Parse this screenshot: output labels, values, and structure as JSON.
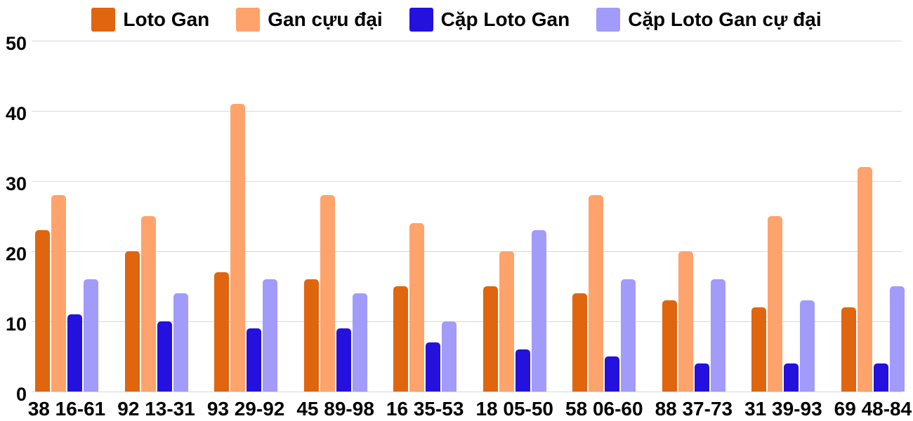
{
  "chart_data": {
    "type": "bar",
    "title": "",
    "xlabel": "",
    "ylabel": "",
    "categories": [
      "38 16-61",
      "92 13-31",
      "93 29-92",
      "45 89-98",
      "16 35-53",
      "18 05-50",
      "58 06-60",
      "88 37-73",
      "31 39-93",
      "69 48-84"
    ],
    "series": [
      {
        "name": "Loto Gan",
        "color": "#e0650f",
        "values": [
          23,
          20,
          17,
          16,
          15,
          15,
          14,
          13,
          12,
          12
        ]
      },
      {
        "name": "Gan cựu đại",
        "color": "#ffa36c",
        "values": [
          28,
          25,
          41,
          28,
          24,
          20,
          28,
          20,
          25,
          32
        ]
      },
      {
        "name": "Cặp Loto Gan",
        "color": "#2411dd",
        "values": [
          11,
          10,
          9,
          9,
          7,
          6,
          5,
          4,
          4,
          4
        ]
      },
      {
        "name": "Cặp Loto Gan cự đại",
        "color": "#a29bfa",
        "values": [
          16,
          14,
          16,
          14,
          10,
          23,
          16,
          16,
          13,
          15
        ]
      }
    ],
    "yticks": [
      0,
      10,
      20,
      30,
      40,
      50
    ],
    "ylim": [
      0,
      50
    ],
    "grid": true,
    "legend_position": "top"
  },
  "colors": {
    "background": "#ffffff",
    "gridline": "#d8d8d8",
    "text": "#000000"
  }
}
